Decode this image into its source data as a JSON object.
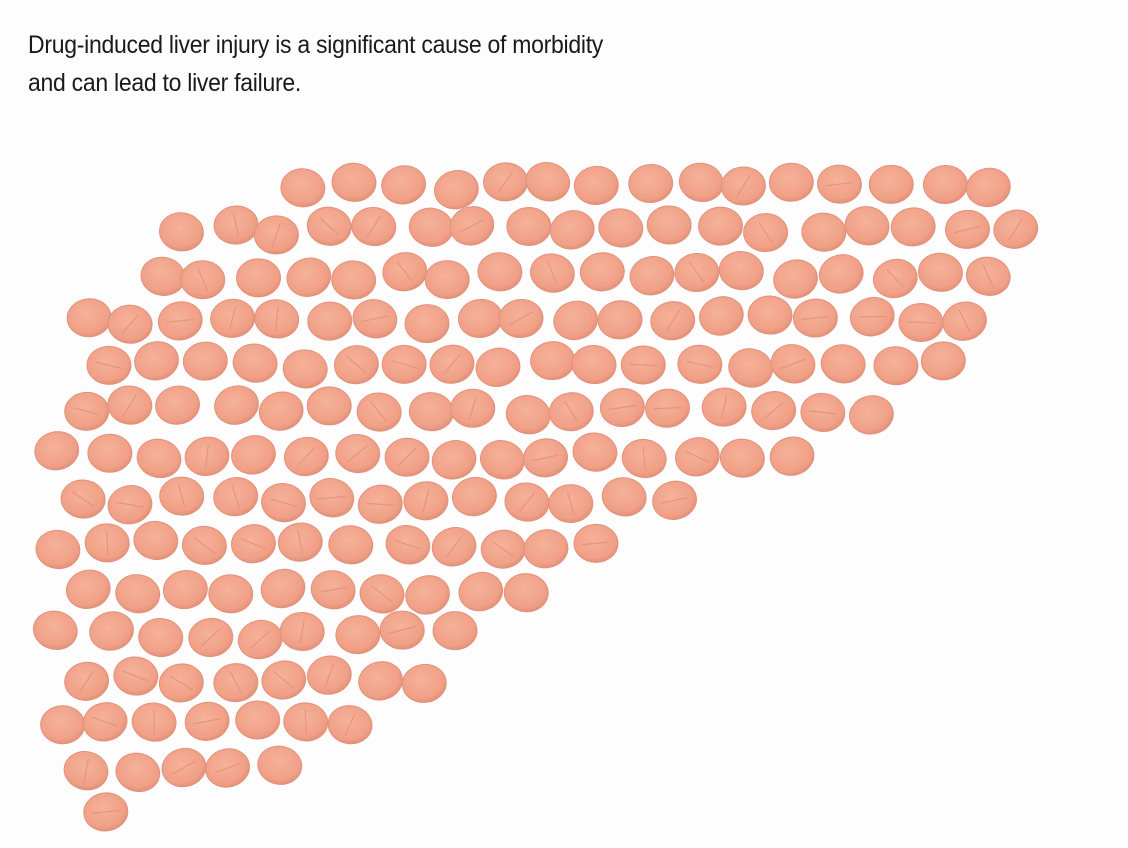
{
  "caption": {
    "lines": [
      "Drug-induced liver injury is a significant cause of morbidity",
      "and can lead to liver failure."
    ]
  }
}
